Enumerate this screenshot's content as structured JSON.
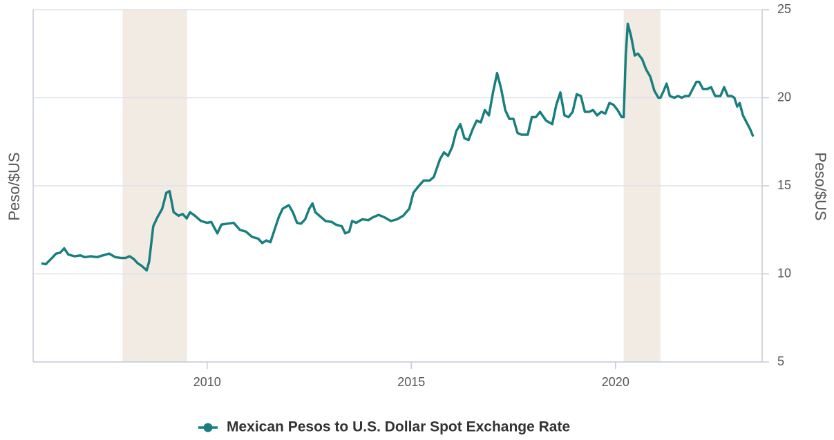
{
  "chart_data": {
    "type": "line",
    "ylabel": "Peso/$US",
    "y2label": "Peso/$US",
    "x": [
      2005.94,
      2006.05,
      2006.2,
      2006.3,
      2006.4,
      2006.5,
      2006.6,
      2006.75,
      2006.9,
      2007.0,
      2007.15,
      2007.3,
      2007.45,
      2007.6,
      2007.75,
      2007.9,
      2008.0,
      2008.1,
      2008.2,
      2008.3,
      2008.4,
      2008.52,
      2008.58,
      2008.68,
      2008.78,
      2008.9,
      2009.0,
      2009.08,
      2009.18,
      2009.3,
      2009.4,
      2009.5,
      2009.58,
      2009.7,
      2009.85,
      2010.0,
      2010.1,
      2010.25,
      2010.35,
      2010.5,
      2010.65,
      2010.8,
      2010.95,
      2011.1,
      2011.25,
      2011.35,
      2011.45,
      2011.55,
      2011.65,
      2011.75,
      2011.85,
      2012.0,
      2012.1,
      2012.2,
      2012.3,
      2012.4,
      2012.5,
      2012.58,
      2012.65,
      2012.8,
      2012.9,
      2013.05,
      2013.15,
      2013.3,
      2013.38,
      2013.48,
      2013.55,
      2013.65,
      2013.8,
      2013.95,
      2014.05,
      2014.2,
      2014.35,
      2014.5,
      2014.65,
      2014.8,
      2014.95,
      2015.05,
      2015.15,
      2015.3,
      2015.45,
      2015.55,
      2015.7,
      2015.8,
      2015.9,
      2016.0,
      2016.1,
      2016.2,
      2016.3,
      2016.4,
      2016.5,
      2016.6,
      2016.7,
      2016.8,
      2016.9,
      2017.0,
      2017.1,
      2017.2,
      2017.3,
      2017.4,
      2017.5,
      2017.6,
      2017.7,
      2017.85,
      2017.95,
      2018.05,
      2018.15,
      2018.3,
      2018.45,
      2018.55,
      2018.65,
      2018.75,
      2018.85,
      2018.95,
      2019.05,
      2019.15,
      2019.25,
      2019.35,
      2019.45,
      2019.55,
      2019.65,
      2019.75,
      2019.85,
      2019.95,
      2020.05,
      2020.15,
      2020.2,
      2020.25,
      2020.3,
      2020.38,
      2020.47,
      2020.55,
      2020.65,
      2020.75,
      2020.85,
      2020.95,
      2021.05,
      2021.1,
      2021.18,
      2021.25,
      2021.33,
      2021.44,
      2021.53,
      2021.62,
      2021.71,
      2021.8,
      2021.89,
      2021.98,
      2022.05,
      2022.14,
      2022.25,
      2022.34,
      2022.44,
      2022.57,
      2022.66,
      2022.75,
      2022.84,
      2022.91,
      2022.98,
      2023.04,
      2023.12,
      2023.21,
      2023.3,
      2023.37
    ],
    "series": [
      {
        "name": "Mexican Pesos to U.S. Dollar Spot Exchange Rate",
        "color": "#187f7e",
        "values": [
          10.6,
          10.55,
          10.9,
          11.15,
          11.2,
          11.45,
          11.1,
          11.0,
          11.05,
          10.95,
          11.0,
          10.95,
          11.05,
          11.15,
          10.95,
          10.9,
          10.9,
          11.0,
          10.85,
          10.6,
          10.45,
          10.2,
          10.7,
          12.7,
          13.2,
          13.7,
          14.6,
          14.7,
          13.5,
          13.3,
          13.4,
          13.15,
          13.5,
          13.3,
          13.0,
          12.9,
          12.95,
          12.3,
          12.8,
          12.85,
          12.9,
          12.5,
          12.4,
          12.1,
          12.0,
          11.75,
          11.9,
          11.8,
          12.5,
          13.2,
          13.7,
          13.9,
          13.5,
          12.9,
          12.85,
          13.1,
          13.7,
          14.0,
          13.5,
          13.2,
          13.0,
          12.95,
          12.8,
          12.7,
          12.3,
          12.4,
          13.0,
          12.9,
          13.1,
          13.05,
          13.2,
          13.35,
          13.2,
          13.0,
          13.1,
          13.3,
          13.7,
          14.6,
          14.9,
          15.3,
          15.3,
          15.5,
          16.5,
          16.9,
          16.7,
          17.2,
          18.1,
          18.5,
          17.7,
          17.6,
          18.2,
          18.7,
          18.6,
          19.3,
          19.0,
          20.3,
          21.4,
          20.5,
          19.3,
          18.8,
          18.8,
          18.0,
          17.9,
          17.9,
          18.9,
          18.9,
          19.2,
          18.7,
          18.5,
          19.6,
          20.3,
          19.0,
          18.9,
          19.2,
          20.2,
          20.1,
          19.2,
          19.2,
          19.3,
          19.0,
          19.2,
          19.1,
          19.7,
          19.6,
          19.3,
          18.9,
          18.9,
          22.4,
          24.2,
          23.5,
          22.4,
          22.5,
          22.2,
          21.6,
          21.2,
          20.4,
          20.0,
          20.0,
          20.4,
          20.8,
          20.1,
          20.0,
          20.1,
          20.0,
          20.1,
          20.1,
          20.5,
          20.9,
          20.9,
          20.5,
          20.5,
          20.6,
          20.1,
          20.1,
          20.6,
          20.1,
          20.1,
          20.0,
          19.5,
          19.7,
          19.0,
          18.6,
          18.2,
          17.8
        ]
      }
    ],
    "recessions": [
      [
        2007.93,
        2009.51
      ],
      [
        2020.2,
        2021.1
      ]
    ],
    "recession_color": "#f2ebe3",
    "xlim": [
      2005.74,
      2023.59
    ],
    "xticks": [
      2010,
      2015,
      2020
    ],
    "ylim": [
      5,
      25
    ],
    "yticks": [
      5,
      10,
      15,
      20,
      25
    ],
    "grid": true,
    "legend": "bottom"
  }
}
